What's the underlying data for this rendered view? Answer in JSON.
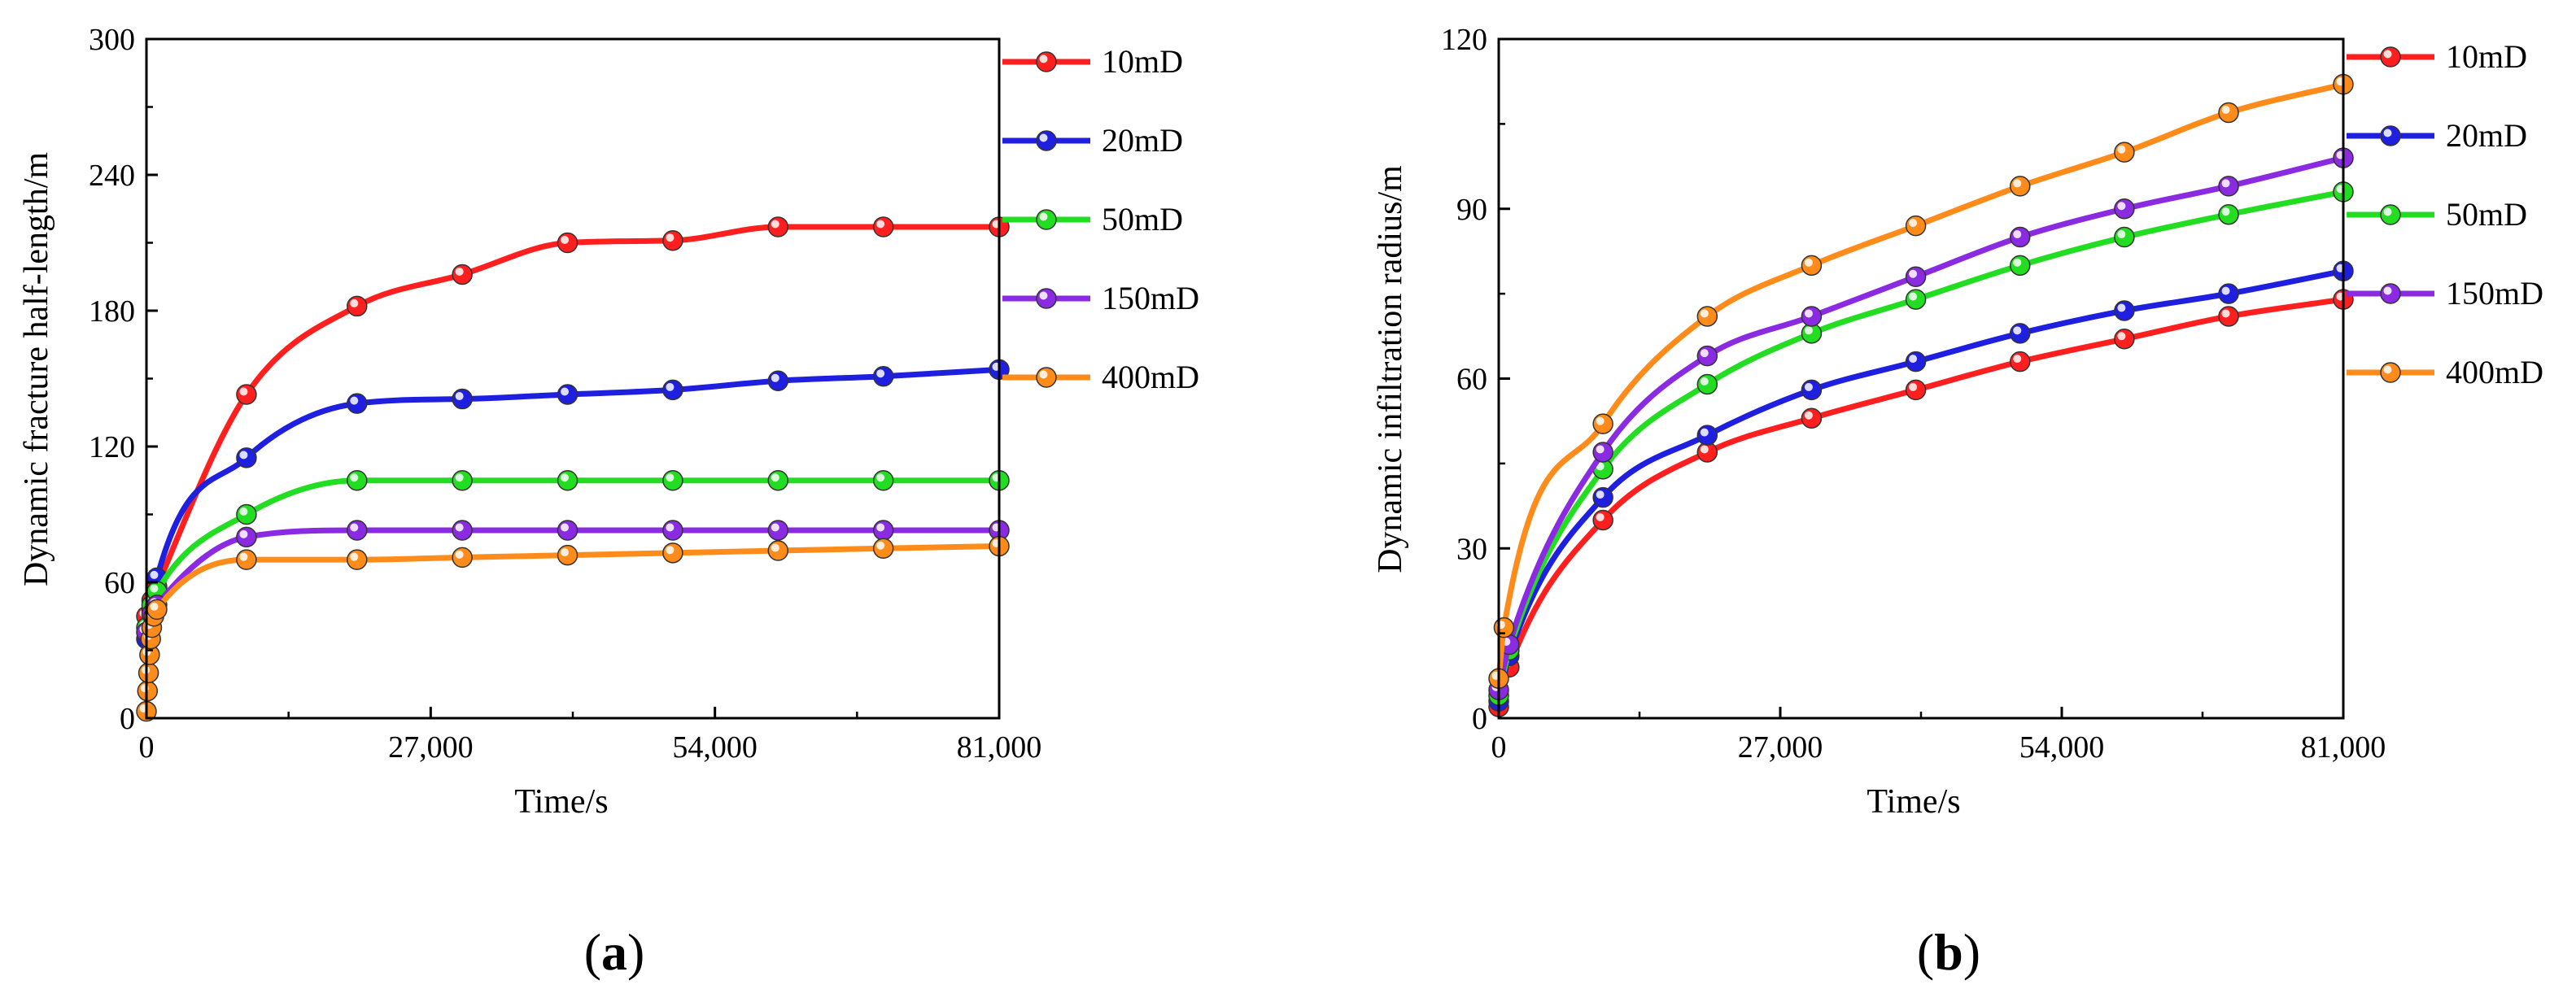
{
  "chart_data": [
    {
      "type": "line",
      "panel_label": "(a)",
      "panel_letter": "a",
      "xlabel": "Time/s",
      "ylabel": "Dynamic fracture half-length/m",
      "xlim": [
        0,
        81000
      ],
      "ylim": [
        0,
        300
      ],
      "xticks": [
        0,
        27000,
        54000,
        81000
      ],
      "xtick_labels": [
        "0",
        "27,000",
        "54,000",
        "81,000"
      ],
      "yticks": [
        0,
        60,
        120,
        180,
        240,
        300
      ],
      "ytick_labels": [
        "0",
        "60",
        "120",
        "180",
        "240",
        "300"
      ],
      "legend_position": "right",
      "series": [
        {
          "name": "10mD",
          "color": "#ff1f1f",
          "x": [
            0,
            500,
            1000,
            9500,
            20000,
            30000,
            40000,
            50000,
            60000,
            70000,
            81000
          ],
          "y": [
            45,
            52,
            58,
            143,
            182,
            196,
            210,
            211,
            217,
            217,
            217
          ]
        },
        {
          "name": "20mD",
          "color": "#1f1fe0",
          "x": [
            0,
            500,
            1000,
            9500,
            20000,
            30000,
            40000,
            50000,
            60000,
            70000,
            81000
          ],
          "y": [
            35,
            48,
            62,
            115,
            139,
            141,
            143,
            145,
            149,
            151,
            154
          ]
        },
        {
          "name": "50mD",
          "color": "#22dd22",
          "x": [
            0,
            500,
            1000,
            9500,
            20000,
            30000,
            40000,
            50000,
            60000,
            70000,
            81000
          ],
          "y": [
            40,
            50,
            56,
            90,
            105,
            105,
            105,
            105,
            105,
            105,
            105
          ]
        },
        {
          "name": "150mD",
          "color": "#8a2be2",
          "x": [
            0,
            500,
            1000,
            9500,
            20000,
            30000,
            40000,
            50000,
            60000,
            70000,
            81000
          ],
          "y": [
            38,
            46,
            50,
            80,
            83,
            83,
            83,
            83,
            83,
            83,
            83
          ]
        },
        {
          "name": "400mD",
          "color": "#ff8c1a",
          "x": [
            0,
            100,
            200,
            300,
            400,
            500,
            700,
            1000,
            9500,
            20000,
            30000,
            40000,
            50000,
            60000,
            70000,
            81000
          ],
          "y": [
            3,
            12,
            20,
            28,
            35,
            40,
            45,
            48,
            70,
            70,
            71,
            72,
            73,
            74,
            75,
            76
          ]
        }
      ]
    },
    {
      "type": "line",
      "panel_label": "(b)",
      "panel_letter": "b",
      "xlabel": "Time/s",
      "ylabel": "Dynamic infiltration radius/m",
      "xlim": [
        0,
        81000
      ],
      "ylim": [
        0,
        120
      ],
      "xticks": [
        0,
        27000,
        54000,
        81000
      ],
      "xtick_labels": [
        "0",
        "27,000",
        "54,000",
        "81,000"
      ],
      "yticks": [
        0,
        30,
        60,
        90,
        120
      ],
      "ytick_labels": [
        "0",
        "30",
        "60",
        "90",
        "120"
      ],
      "legend_position": "right",
      "series": [
        {
          "name": "10mD",
          "color": "#ff1f1f",
          "x": [
            0,
            1000,
            10000,
            20000,
            30000,
            40000,
            50000,
            60000,
            70000,
            81000
          ],
          "y": [
            2,
            9,
            35,
            47,
            53,
            58,
            63,
            67,
            71,
            74
          ]
        },
        {
          "name": "20mD",
          "color": "#1f1fe0",
          "x": [
            0,
            1000,
            10000,
            20000,
            30000,
            40000,
            50000,
            60000,
            70000,
            81000
          ],
          "y": [
            3,
            11,
            39,
            50,
            58,
            63,
            68,
            72,
            75,
            79
          ]
        },
        {
          "name": "50mD",
          "color": "#22dd22",
          "x": [
            0,
            1000,
            10000,
            20000,
            30000,
            40000,
            50000,
            60000,
            70000,
            81000
          ],
          "y": [
            4,
            12,
            44,
            59,
            68,
            74,
            80,
            85,
            89,
            93
          ]
        },
        {
          "name": "150mD",
          "color": "#8a2be2",
          "x": [
            0,
            1000,
            10000,
            20000,
            30000,
            40000,
            50000,
            60000,
            70000,
            81000
          ],
          "y": [
            5,
            13,
            47,
            64,
            71,
            78,
            85,
            90,
            94,
            99
          ]
        },
        {
          "name": "400mD",
          "color": "#ff8c1a",
          "x": [
            0,
            500,
            10000,
            20000,
            30000,
            40000,
            50000,
            60000,
            70000,
            81000
          ],
          "y": [
            7,
            16,
            52,
            71,
            80,
            87,
            94,
            100,
            107,
            112
          ]
        }
      ]
    }
  ]
}
